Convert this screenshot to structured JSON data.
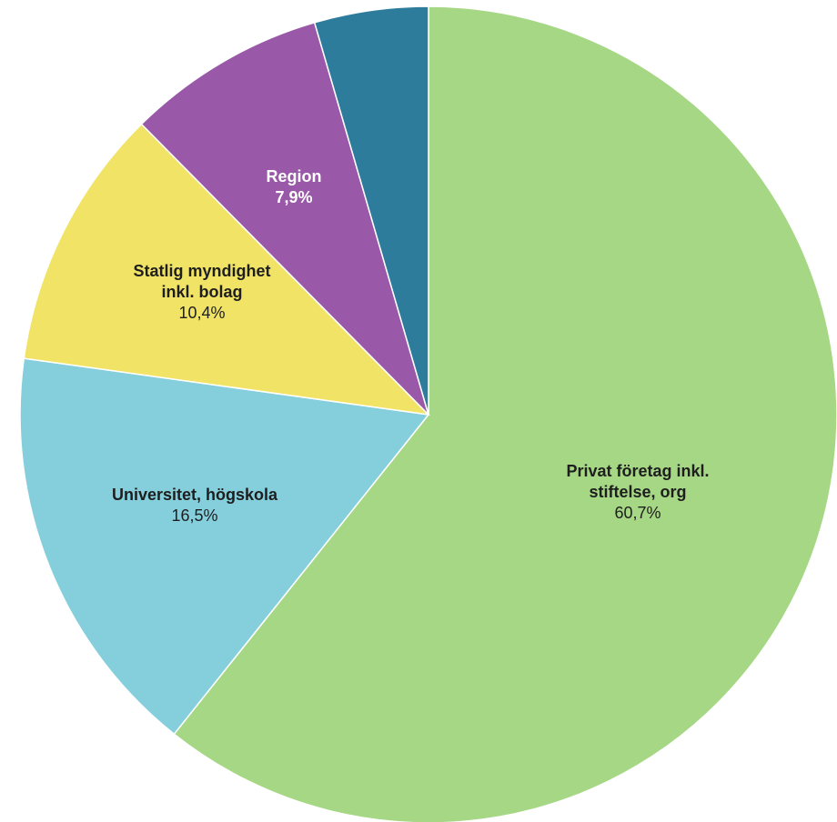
{
  "chart_data": {
    "type": "pie",
    "slices": [
      {
        "name": "Privat företag inkl. stiftelse, org",
        "label_lines": [
          "Privat företag inkl.",
          "stiftelse, org"
        ],
        "value": 60.7,
        "value_label": "60,7%",
        "color": "#a6d785",
        "text_color": "#1e1e1e",
        "name_color": "#1e1e1e"
      },
      {
        "name": "Universitet, högskola",
        "label_lines": [
          "Universitet, högskola"
        ],
        "value": 16.5,
        "value_label": "16,5%",
        "color": "#85cfdd",
        "text_color": "#1e1e1e",
        "name_color": "#1e1e1e"
      },
      {
        "name": "Statlig myndighet inkl. bolag",
        "label_lines": [
          "Statlig myndighet",
          "inkl. bolag"
        ],
        "value": 10.4,
        "value_label": "10,4%",
        "color": "#f1e366",
        "text_color": "#1e1e1e",
        "name_color": "#1e1e1e"
      },
      {
        "name": "Region",
        "label_lines": [
          "Region"
        ],
        "value": 7.9,
        "value_label": "7,9%",
        "color": "#9a59a8",
        "text_color": "#ffffff",
        "name_color": "#ffffff"
      },
      {
        "name": "",
        "label_lines": [],
        "value": 4.5,
        "value_label": "",
        "color": "#2e7c9b",
        "text_color": "#ffffff",
        "name_color": "#ffffff"
      }
    ],
    "start": "12 o'clock",
    "direction": "clockwise"
  }
}
